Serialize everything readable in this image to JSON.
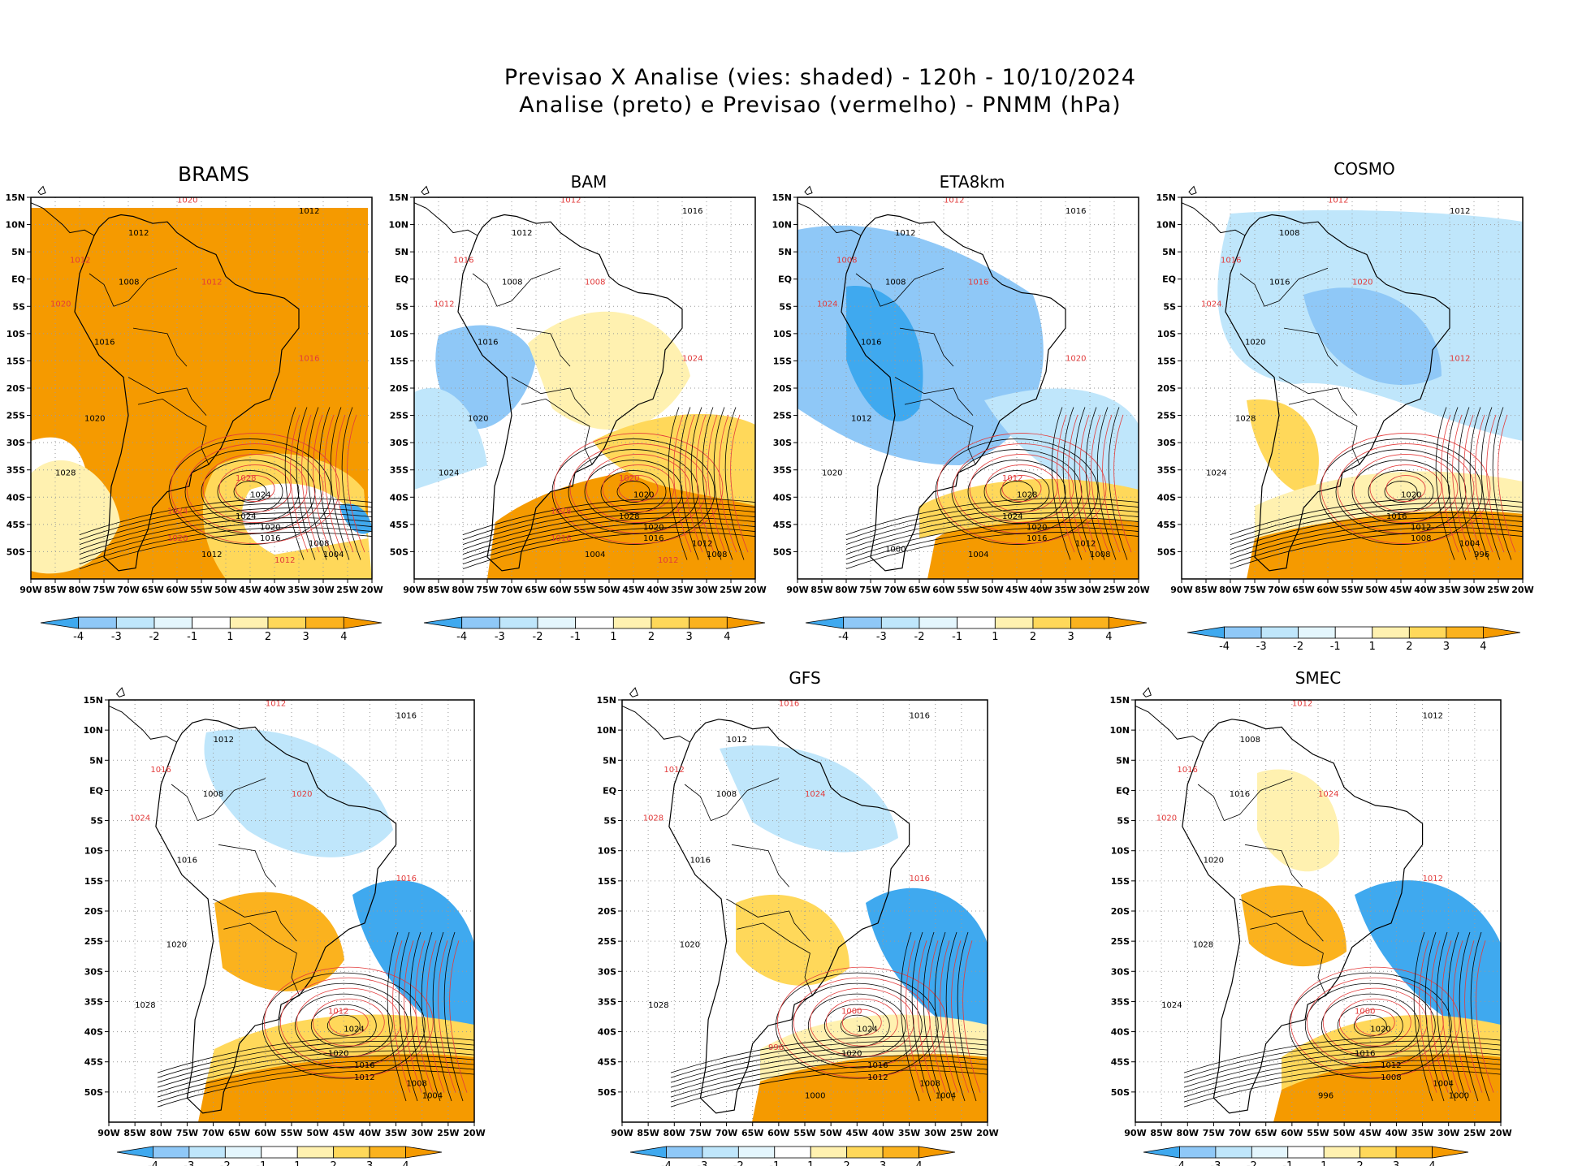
{
  "figure": {
    "title_line1": "Previsao X Analise (vies: shaded) - 120h - 10/10/2024",
    "title_line2": "Analise (preto) e Previsao (vermelho) - PNMM (hPa)"
  },
  "axes": {
    "lat_labels": [
      "15N",
      "10N",
      "5N",
      "EQ",
      "5S",
      "10S",
      "15S",
      "20S",
      "25S",
      "30S",
      "35S",
      "40S",
      "45S",
      "50S"
    ],
    "lon_labels": [
      "90W",
      "85W",
      "80W",
      "75W",
      "70W",
      "65W",
      "60W",
      "55W",
      "50W",
      "45W",
      "40W",
      "35W",
      "30W",
      "25W",
      "20W"
    ],
    "lat_range": [
      15,
      -55
    ],
    "lon_range": [
      -90,
      -20
    ]
  },
  "colorbar": {
    "labels": [
      "-4",
      "-3",
      "-2",
      "-1",
      "1",
      "2",
      "3",
      "4"
    ],
    "colors": [
      "#3fa9ef",
      "#8fc8f7",
      "#bfe6fb",
      "#e4f6fd",
      "#ffffff",
      "#fff1b0",
      "#ffd85a",
      "#fbb21e",
      "#f59a00"
    ]
  },
  "colors": {
    "analysis_contour": "#000000",
    "forecast_contour": "#e23b3b",
    "coastline": "#000000",
    "grid": "#9a9a9a"
  },
  "panels": [
    {
      "title": "BRAMS",
      "isobars_black": [
        "1012",
        "1012",
        "1008",
        "1016",
        "1020",
        "1028",
        "1024",
        "1024",
        "1020",
        "1016",
        "1008",
        "1004",
        "1012"
      ],
      "isobars_red": [
        "1020",
        "1012",
        "1012",
        "1020",
        "1016",
        "1028",
        "1024",
        "1020",
        "1012"
      ]
    },
    {
      "title": "BAM",
      "isobars_black": [
        "1016",
        "1012",
        "1008",
        "1016",
        "1020",
        "1024",
        "1020",
        "1028",
        "1020",
        "1016",
        "1012",
        "1008",
        "1004"
      ],
      "isobars_red": [
        "1012",
        "1016",
        "1008",
        "1012",
        "1024",
        "1020",
        "1028",
        "1016",
        "1012"
      ]
    },
    {
      "title": "ETA8km",
      "isobars_black": [
        "1016",
        "1012",
        "1008",
        "1016",
        "1012",
        "1020",
        "1028",
        "1024",
        "1020",
        "1016",
        "1012",
        "1008",
        "1004",
        "1000"
      ],
      "isobars_red": [
        "1012",
        "1008",
        "1016",
        "1024",
        "1020",
        "1012"
      ]
    },
    {
      "title": "COSMO",
      "isobars_black": [
        "1012",
        "1008",
        "1016",
        "1020",
        "1028",
        "1024",
        "1020",
        "1016",
        "1012",
        "1008",
        "1004",
        "996"
      ],
      "isobars_red": [
        "1012",
        "1016",
        "1020",
        "1024",
        "1012"
      ]
    },
    {
      "title": "",
      "isobars_black": [
        "1016",
        "1012",
        "1008",
        "1016",
        "1020",
        "1028",
        "1024",
        "1020",
        "1016",
        "1012",
        "1008",
        "1004"
      ],
      "isobars_red": [
        "1012",
        "1016",
        "1020",
        "1024",
        "1016",
        "1012"
      ]
    },
    {
      "title": "GFS",
      "isobars_black": [
        "1016",
        "1012",
        "1008",
        "1016",
        "1020",
        "1028",
        "1024",
        "1020",
        "1016",
        "1012",
        "1008",
        "1004",
        "1000"
      ],
      "isobars_red": [
        "1016",
        "1012",
        "1024",
        "1028",
        "1016",
        "1000",
        "996"
      ]
    },
    {
      "title": "SMEC",
      "isobars_black": [
        "1012",
        "1008",
        "1016",
        "1020",
        "1028",
        "1024",
        "1020",
        "1016",
        "1012",
        "1008",
        "1004",
        "1000",
        "996"
      ],
      "isobars_red": [
        "1012",
        "1016",
        "1024",
        "1020",
        "1012",
        "1000"
      ]
    }
  ]
}
